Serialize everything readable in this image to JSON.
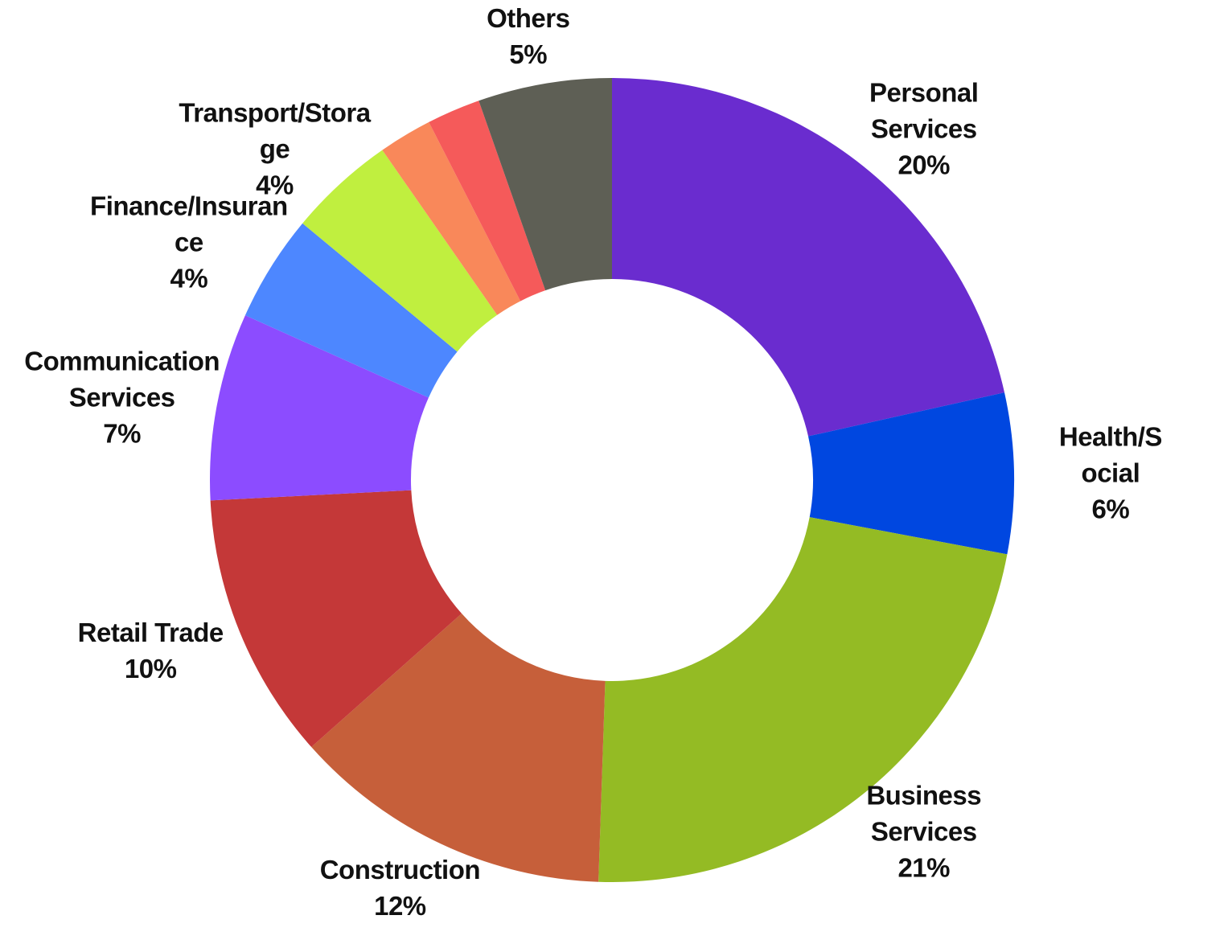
{
  "chart_data": {
    "type": "donut",
    "categories": [
      "Personal Services",
      "Health/Social",
      "Business Services",
      "Construction",
      "Retail Trade",
      "Communication Services",
      "Finance/Insurance",
      "Transport/Storage",
      null,
      null,
      "Others"
    ],
    "values": [
      20,
      6,
      21,
      12,
      10,
      7,
      4,
      4,
      2,
      2,
      5
    ],
    "value_labels": [
      "20%",
      "6%",
      "21%",
      "12%",
      "10%",
      "7%",
      "4%",
      "4%",
      null,
      null,
      "5%"
    ],
    "colors": [
      "#6a2ccf",
      "#0047e0",
      "#94bb24",
      "#c65f3a",
      "#c43838",
      "#8c4cff",
      "#4d87ff",
      "#c0ef3f",
      "#f9885a",
      "#f55a5a",
      "#5e5f55"
    ]
  }
}
